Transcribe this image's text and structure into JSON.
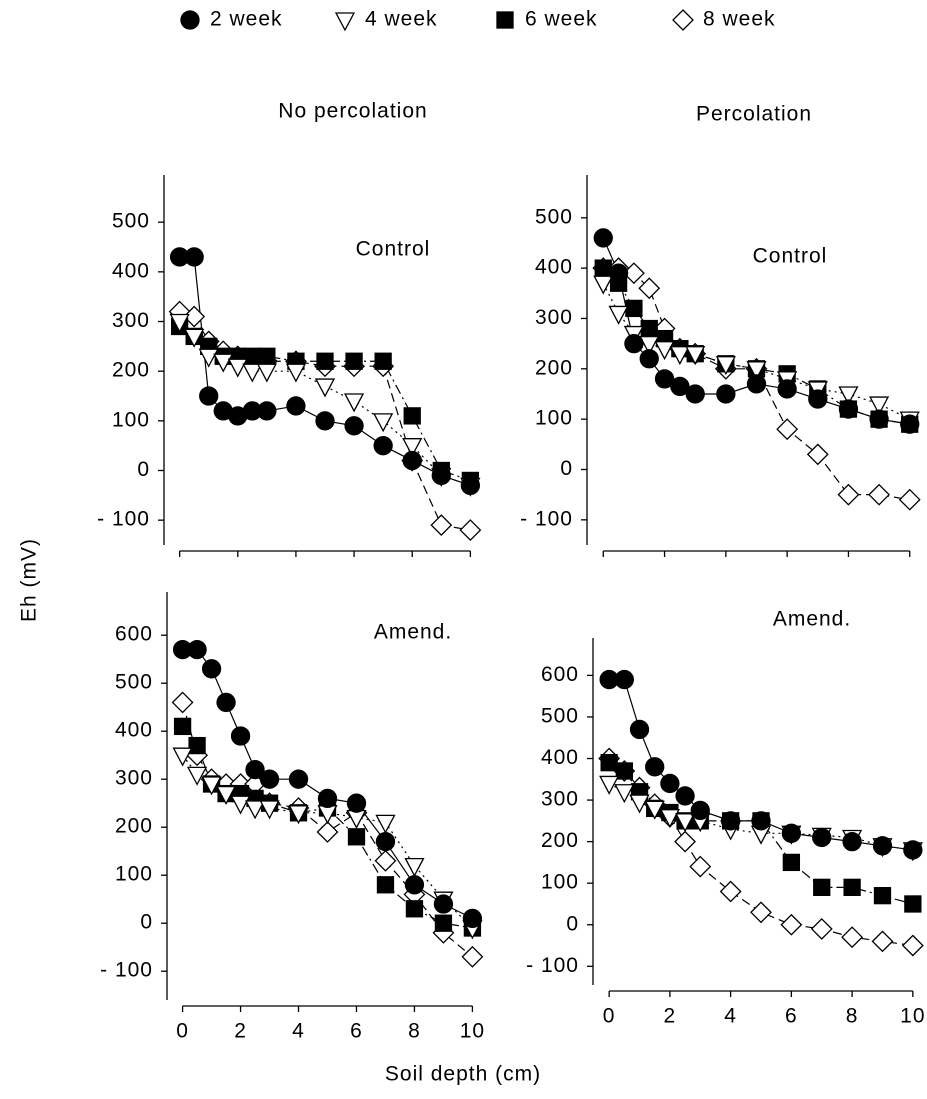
{
  "xlabel": "Soil depth (cm)",
  "ylabel": "Eh (mV)",
  "chart_data": [
    {
      "type": "line",
      "title": "No percolation",
      "annotation": "Control",
      "x": [
        0,
        0.5,
        1,
        1.5,
        2,
        2.5,
        3,
        4,
        5,
        6,
        7,
        8,
        9,
        10
      ],
      "xlim": [
        -0.4,
        10.4
      ],
      "ylim": [
        -150,
        595
      ],
      "yticks": [
        {
          "value": -100,
          "label": "- 100"
        },
        0,
        100,
        200,
        300,
        400,
        500
      ],
      "series": [
        {
          "name": "2 week",
          "marker": "circle",
          "fill": "#000000",
          "dash": "solid",
          "values": [
            430,
            430,
            150,
            120,
            110,
            120,
            120,
            130,
            100,
            90,
            50,
            20,
            -10,
            -30
          ]
        },
        {
          "name": "4 week",
          "marker": "triangle-down",
          "fill": "#ffffff",
          "dash": "dotted",
          "values": [
            300,
            270,
            230,
            220,
            210,
            200,
            200,
            200,
            170,
            140,
            100,
            50,
            -10,
            -30
          ]
        },
        {
          "name": "6 week",
          "marker": "square",
          "fill": "#000000",
          "dash": "dashdot",
          "values": [
            290,
            270,
            250,
            230,
            230,
            230,
            230,
            220,
            220,
            220,
            220,
            110,
            0,
            -20
          ]
        },
        {
          "name": "8 week",
          "marker": "diamond",
          "fill": "#ffffff",
          "dash": "dashed",
          "values": [
            320,
            310,
            260,
            240,
            230,
            220,
            220,
            220,
            210,
            210,
            210,
            20,
            -110,
            -120
          ]
        }
      ]
    },
    {
      "type": "line",
      "title": "Percolation",
      "annotation": "Control",
      "x": [
        0,
        0.5,
        1,
        1.5,
        2,
        2.5,
        3,
        4,
        5,
        6,
        7,
        8,
        9,
        10
      ],
      "xlim": [
        -0.4,
        10.4
      ],
      "ylim": [
        -150,
        585
      ],
      "yticks": [
        {
          "value": -100,
          "label": "- 100"
        },
        0,
        100,
        200,
        300,
        400,
        500
      ],
      "series": [
        {
          "name": "2 week",
          "marker": "circle",
          "fill": "#000000",
          "dash": "solid",
          "values": [
            460,
            390,
            250,
            220,
            180,
            165,
            150,
            150,
            170,
            160,
            140,
            120,
            100,
            90
          ]
        },
        {
          "name": "4 week",
          "marker": "triangle-down",
          "fill": "#ffffff",
          "dash": "dotted",
          "values": [
            370,
            310,
            270,
            250,
            240,
            230,
            230,
            210,
            200,
            180,
            160,
            150,
            130,
            100
          ]
        },
        {
          "name": "6 week",
          "marker": "square",
          "fill": "#000000",
          "dash": "dashdot",
          "values": [
            400,
            370,
            320,
            280,
            260,
            240,
            230,
            210,
            200,
            190,
            160,
            120,
            100,
            90
          ]
        },
        {
          "name": "8 week",
          "marker": "diamond",
          "fill": "#ffffff",
          "dash": "dashed",
          "values": [
            400,
            400,
            390,
            360,
            280,
            240,
            230,
            200,
            200,
            80,
            30,
            -50,
            -50,
            -60
          ]
        }
      ]
    },
    {
      "type": "line",
      "annotation": "Amend.",
      "x": [
        0,
        0.5,
        1,
        1.5,
        2,
        2.5,
        3,
        4,
        5,
        6,
        7,
        8,
        9,
        10
      ],
      "xlim": [
        -0.4,
        10.4
      ],
      "ylim": [
        -160,
        690
      ],
      "xticks": [
        0,
        2,
        4,
        6,
        8,
        10
      ],
      "yticks": [
        {
          "value": -100,
          "label": "- 100"
        },
        0,
        100,
        200,
        300,
        400,
        500,
        600
      ],
      "series": [
        {
          "name": "2 week",
          "marker": "circle",
          "fill": "#000000",
          "dash": "solid",
          "values": [
            570,
            570,
            530,
            460,
            390,
            320,
            300,
            300,
            260,
            250,
            170,
            80,
            40,
            10
          ]
        },
        {
          "name": "4 week",
          "marker": "triangle-down",
          "fill": "#ffffff",
          "dash": "dotted",
          "values": [
            350,
            310,
            290,
            270,
            250,
            240,
            240,
            230,
            230,
            220,
            210,
            120,
            50,
            -10
          ]
        },
        {
          "name": "6 week",
          "marker": "square",
          "fill": "#000000",
          "dash": "dashdot",
          "values": [
            410,
            370,
            290,
            270,
            270,
            260,
            250,
            230,
            240,
            180,
            80,
            30,
            0,
            -10
          ]
        },
        {
          "name": "8 week",
          "marker": "diamond",
          "fill": "#ffffff",
          "dash": "dashed",
          "values": [
            460,
            350,
            300,
            290,
            290,
            290,
            250,
            240,
            190,
            230,
            130,
            60,
            -20,
            -70
          ]
        }
      ]
    },
    {
      "type": "line",
      "annotation": "Amend.",
      "x": [
        0,
        0.5,
        1,
        1.5,
        2,
        2.5,
        3,
        4,
        5,
        6,
        7,
        8,
        9,
        10
      ],
      "xlim": [
        -0.4,
        10.4
      ],
      "ylim": [
        -145,
        690
      ],
      "xticks": [
        0,
        2,
        4,
        6,
        8,
        10
      ],
      "yticks": [
        {
          "value": -100,
          "label": "- 100"
        },
        0,
        100,
        200,
        300,
        400,
        500,
        600
      ],
      "series": [
        {
          "name": "2 week",
          "marker": "circle",
          "fill": "#000000",
          "dash": "solid",
          "values": [
            590,
            590,
            470,
            380,
            340,
            310,
            275,
            250,
            250,
            220,
            210,
            200,
            190,
            180
          ]
        },
        {
          "name": "4 week",
          "marker": "triangle-down",
          "fill": "#ffffff",
          "dash": "dotted",
          "values": [
            340,
            320,
            295,
            280,
            260,
            250,
            250,
            230,
            220,
            220,
            215,
            210,
            190,
            180
          ]
        },
        {
          "name": "6 week",
          "marker": "square",
          "fill": "#000000",
          "dash": "dashdot",
          "values": [
            390,
            370,
            320,
            280,
            270,
            250,
            250,
            250,
            250,
            150,
            90,
            90,
            70,
            50
          ]
        },
        {
          "name": "8 week",
          "marker": "diamond",
          "fill": "#ffffff",
          "dash": "dashed",
          "values": [
            400,
            370,
            330,
            290,
            260,
            200,
            140,
            80,
            30,
            0,
            -10,
            -30,
            -40,
            -50
          ]
        }
      ]
    }
  ]
}
